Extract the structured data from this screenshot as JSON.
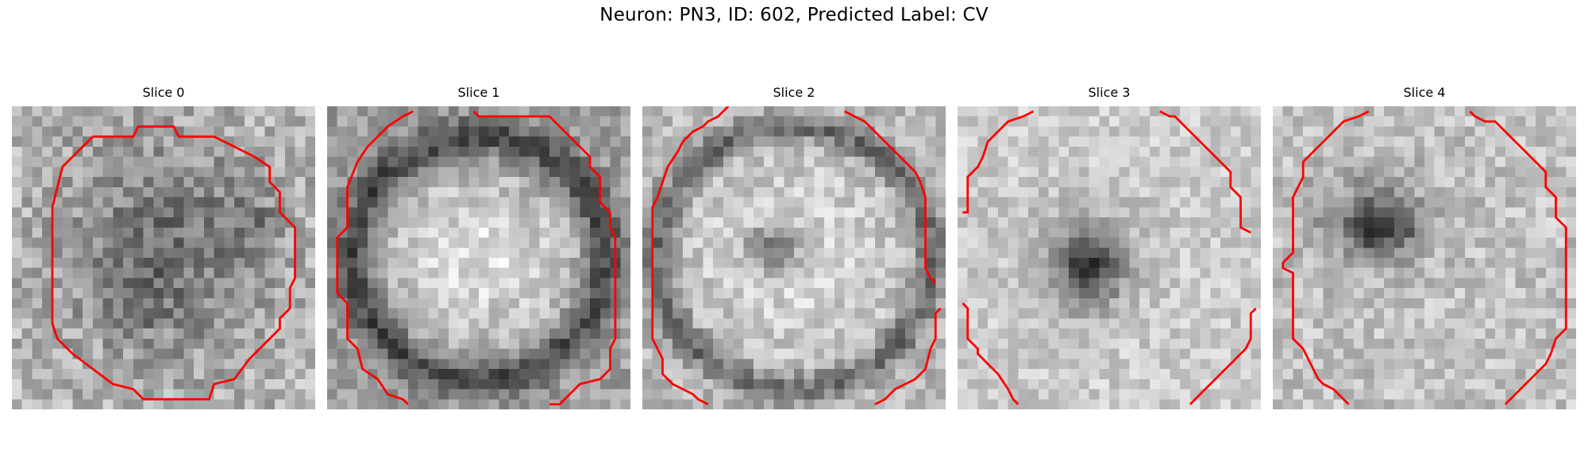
{
  "figure": {
    "title": "Neuron: PN3, ID: 602, Predicted Label: CV"
  },
  "panels": [
    {
      "title": "Slice 0"
    },
    {
      "title": "Slice 1"
    },
    {
      "title": "Slice 2"
    },
    {
      "title": "Slice 3"
    },
    {
      "title": "Slice 4"
    }
  ],
  "colors": {
    "contour": "#e41a1c",
    "background": "#ffffff"
  }
}
